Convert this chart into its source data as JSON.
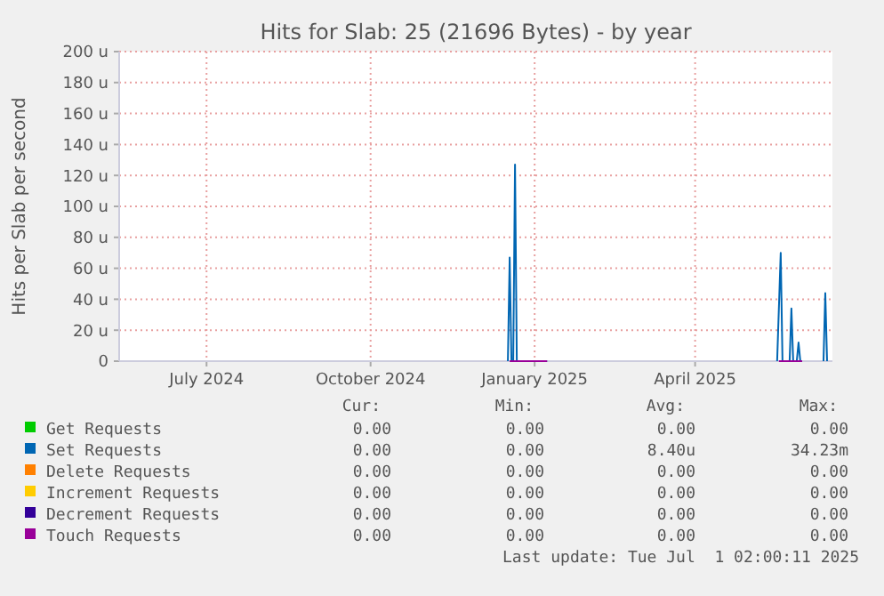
{
  "chart_data": {
    "type": "line",
    "title": "Hits for Slab: 25 (21696 Bytes) - by year",
    "ylabel": "Hits per Slab per second",
    "xlim": [
      "2024-05-27",
      "2025-07-01"
    ],
    "xticks": [
      {
        "value": "2024-07-15",
        "label": "July 2024"
      },
      {
        "value": "2024-10-15",
        "label": "October 2024"
      },
      {
        "value": "2025-01-15",
        "label": "January 2025"
      },
      {
        "value": "2025-04-15",
        "label": "April 2025"
      }
    ],
    "ylim": [
      0,
      200
    ],
    "yticks": [
      0,
      {
        "value": 20,
        "label": "20 u"
      },
      {
        "value": 40,
        "label": "40 u"
      },
      {
        "value": 60,
        "label": "60 u"
      },
      {
        "value": 80,
        "label": "80 u"
      },
      {
        "value": 100,
        "label": "100 u"
      },
      {
        "value": 120,
        "label": "120 u"
      },
      {
        "value": 140,
        "label": "140 u"
      },
      {
        "value": 160,
        "label": "160 u"
      },
      {
        "value": 180,
        "label": "180 u"
      },
      {
        "value": 200,
        "label": "200 u"
      }
    ],
    "grid": true,
    "legend": "bottom",
    "marker": "none",
    "line_style": "solid",
    "series": [
      {
        "name": "Get Requests",
        "color": "#00cc00"
      },
      {
        "name": "Set Requests",
        "color": "#0066b3",
        "x": [
          "2024-12-31",
          "2025-01-01",
          "2025-01-02",
          "2025-01-03",
          "2025-01-04",
          "2025-01-05",
          "2025-01-22",
          "2025-01-23",
          "2025-05-31",
          "2025-06-02",
          "2025-06-03",
          "2025-06-07",
          "2025-06-08",
          "2025-06-09",
          "2025-06-11",
          "2025-06-12",
          "2025-06-13",
          "2025-06-14",
          "2025-06-15",
          "2025-06-26",
          "2025-06-27",
          "2025-06-28"
        ],
        "values": [
          0,
          67,
          0,
          0,
          127,
          0,
          0,
          null,
          0,
          70,
          0,
          0,
          34,
          0,
          0,
          12,
          0,
          0,
          null,
          0,
          44,
          0
        ]
      },
      {
        "name": "Delete Requests",
        "color": "#ff8000"
      },
      {
        "name": "Increment Requests",
        "color": "#ffcc00"
      },
      {
        "name": "Decrement Requests",
        "color": "#330099"
      },
      {
        "name": "Touch Requests",
        "color": "#990099",
        "x": [
          "2025-01-01",
          "2025-01-22",
          "2025-01-23",
          "2025-06-01",
          "2025-06-14"
        ],
        "values": [
          0,
          0,
          null,
          0,
          0
        ]
      }
    ],
    "annotations": [
      "Cur:",
      "Min:",
      "Avg:",
      "Max:",
      "0.00",
      "0.00",
      "0.00",
      "0.00",
      "0.00",
      "0.00",
      "8.40u",
      "34.23m",
      "0.00",
      "0.00",
      "0.00",
      "0.00",
      "0.00",
      "0.00",
      "0.00",
      "0.00",
      "0.00",
      "0.00",
      "0.00",
      "0.00",
      "0.00",
      "0.00",
      "0.00",
      "0.00",
      "Last update: Tue Jul  1 02:00:11 2025"
    ]
  }
}
